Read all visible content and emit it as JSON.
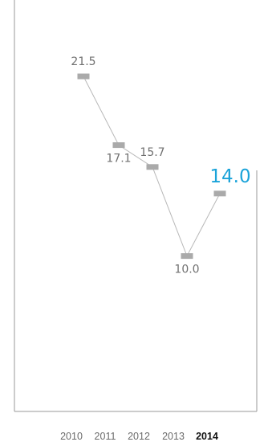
{
  "chart_data": {
    "type": "line",
    "categories": [
      "2010",
      "2011",
      "2012",
      "2013",
      "2014"
    ],
    "values": [
      21.5,
      17.1,
      15.7,
      10.0,
      14.0
    ],
    "value_labels": [
      "21.5",
      "17.1",
      "15.7",
      "10.0",
      "14.0"
    ],
    "highlight_index": 4,
    "title": "",
    "xlabel": "",
    "ylabel": "",
    "ylim": [
      0,
      30
    ],
    "grid": false,
    "legend": "none",
    "colors": {
      "line": "#b8b8b8",
      "marker": "#aaaaaa",
      "axis": "#9a9a9a",
      "label": "#707070",
      "highlight": "#1aa3d9",
      "tick": "#6a6a6a",
      "tick_highlight": "#111111"
    }
  }
}
